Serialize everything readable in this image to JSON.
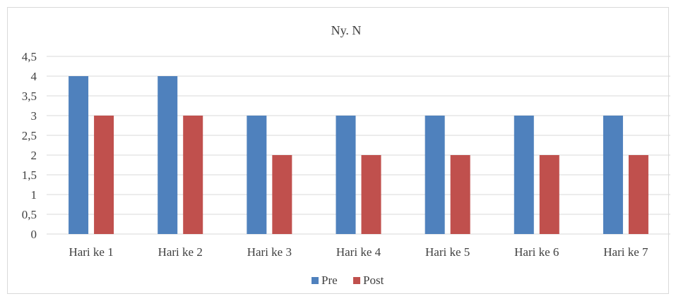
{
  "chart_data": {
    "type": "bar",
    "title": "Ny. N",
    "xlabel": "",
    "ylabel": "",
    "categories": [
      "Hari ke 1",
      "Hari ke 2",
      "Hari ke 3",
      "Hari ke 4",
      "Hari ke 5",
      "Hari ke 6",
      "Hari ke 7"
    ],
    "series": [
      {
        "name": "Pre",
        "values": [
          4,
          4,
          3,
          3,
          3,
          3,
          3
        ],
        "color": "#4f81bd"
      },
      {
        "name": "Post",
        "values": [
          3,
          3,
          2,
          2,
          2,
          2,
          2
        ],
        "color": "#c0504d"
      }
    ],
    "ylim": [
      0,
      4.5
    ],
    "yticks": [
      "0",
      "0,5",
      "1",
      "1,5",
      "2",
      "2,5",
      "3",
      "3,5",
      "4",
      "4,5"
    ],
    "grid": true,
    "legend": "bottom"
  }
}
